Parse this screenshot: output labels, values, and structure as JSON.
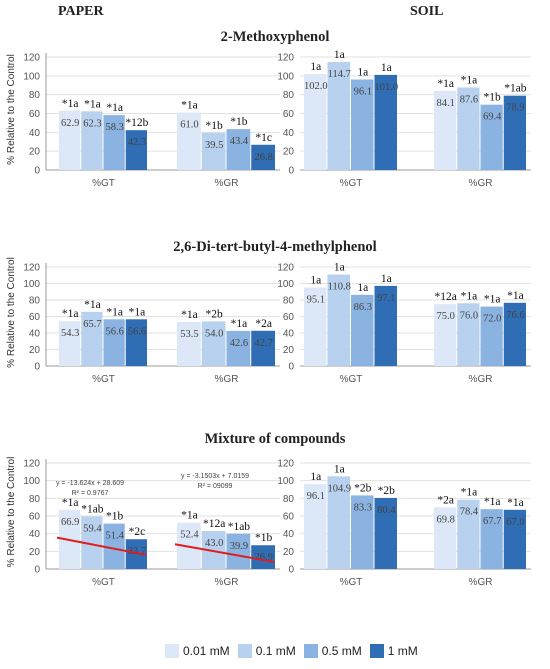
{
  "headers": {
    "paper": "PAPER",
    "soil": "SOIL"
  },
  "colors": [
    "#dce8f7",
    "#b7d1ee",
    "#8bb3e1",
    "#2f6db5"
  ],
  "legend": [
    "0.01 mM",
    "0.1 mM",
    "0.5 mM",
    "1 mM"
  ],
  "ylabel": "% Relative to the Control",
  "yticks": [
    "0",
    "20",
    "40",
    "60",
    "80",
    "100",
    "120"
  ],
  "rows": [
    {
      "title": "2-Methoxyphenol"
    },
    {
      "title": "2,6-Di-tert-butyl-4-methylphenol"
    },
    {
      "title": "Mixture of compounds"
    }
  ],
  "chart_data": [
    {
      "type": "bar",
      "row": 0,
      "panel": "PAPER",
      "categories": [
        "%GT",
        "%GR"
      ],
      "ylim": [
        0,
        120
      ],
      "ylabel": "% Relative to the Control",
      "series": [
        {
          "name": "0.01 mM",
          "values": [
            62.9,
            61.0
          ],
          "labels": [
            "*1a",
            "*1a"
          ]
        },
        {
          "name": "0.1 mM",
          "values": [
            62.3,
            39.5
          ],
          "labels": [
            "*1a",
            "*1b"
          ]
        },
        {
          "name": "0.5 mM",
          "values": [
            58.3,
            43.4
          ],
          "labels": [
            "*1a",
            "*1b"
          ]
        },
        {
          "name": "1 mM",
          "values": [
            42.3,
            26.8
          ],
          "labels": [
            "*12b",
            "*1c"
          ]
        }
      ]
    },
    {
      "type": "bar",
      "row": 0,
      "panel": "SOIL",
      "categories": [
        "%GT",
        "%GR"
      ],
      "ylim": [
        0,
        120
      ],
      "series": [
        {
          "name": "0.01 mM",
          "values": [
            102.0,
            84.1
          ],
          "labels": [
            "1a",
            "*1a"
          ]
        },
        {
          "name": "0.1 mM",
          "values": [
            114.7,
            87.6
          ],
          "labels": [
            "1a",
            "*1a"
          ]
        },
        {
          "name": "0.5 mM",
          "values": [
            96.1,
            69.4
          ],
          "labels": [
            "1a",
            "*1b"
          ]
        },
        {
          "name": "1 mM",
          "values": [
            101.0,
            78.9
          ],
          "labels": [
            "1a",
            "*1ab"
          ]
        }
      ]
    },
    {
      "type": "bar",
      "row": 1,
      "panel": "PAPER",
      "categories": [
        "%GT",
        "%GR"
      ],
      "ylim": [
        0,
        120
      ],
      "ylabel": "% Relative to the Control",
      "series": [
        {
          "name": "0.01 mM",
          "values": [
            54.3,
            53.5
          ],
          "labels": [
            "*1a",
            "*1a"
          ]
        },
        {
          "name": "0.1 mM",
          "values": [
            65.7,
            54.0
          ],
          "labels": [
            "*1a",
            "*2b"
          ]
        },
        {
          "name": "0.5 mM",
          "values": [
            56.6,
            42.6
          ],
          "labels": [
            "*1a",
            "*1a"
          ]
        },
        {
          "name": "1 mM",
          "values": [
            56.6,
            42.7
          ],
          "labels": [
            "*1a",
            "*2a"
          ]
        }
      ]
    },
    {
      "type": "bar",
      "row": 1,
      "panel": "SOIL",
      "categories": [
        "%GT",
        "%GR"
      ],
      "ylim": [
        0,
        120
      ],
      "series": [
        {
          "name": "0.01 mM",
          "values": [
            95.1,
            75.0
          ],
          "labels": [
            "1a",
            "*12a"
          ]
        },
        {
          "name": "0.1 mM",
          "values": [
            110.8,
            76.0
          ],
          "labels": [
            "1a",
            "*1a"
          ]
        },
        {
          "name": "0.5 mM",
          "values": [
            86.3,
            72.0
          ],
          "labels": [
            "1a",
            "*1a"
          ]
        },
        {
          "name": "1 mM",
          "values": [
            97.1,
            76.6
          ],
          "labels": [
            "1a",
            "*1a"
          ]
        }
      ]
    },
    {
      "type": "bar",
      "row": 2,
      "panel": "PAPER",
      "categories": [
        "%GT",
        "%GR"
      ],
      "ylim": [
        0,
        120
      ],
      "ylabel": "% Relative to the Control",
      "series": [
        {
          "name": "0.01 mM",
          "values": [
            66.9,
            52.4
          ],
          "labels": [
            "*1a",
            "*1a"
          ]
        },
        {
          "name": "0.1 mM",
          "values": [
            59.4,
            43.0
          ],
          "labels": [
            "*1ab",
            "*12a"
          ]
        },
        {
          "name": "0.5 mM",
          "values": [
            51.4,
            39.9
          ],
          "labels": [
            "*1b",
            "*1ab"
          ]
        },
        {
          "name": "1 mM",
          "values": [
            33.7,
            26.9
          ],
          "labels": [
            "*2c",
            "*1b"
          ]
        }
      ],
      "trendlines": [
        {
          "category": "%GT",
          "equation": "y = -13.624x + 28.609",
          "r2": "R² = 0.9767",
          "start": 35.5,
          "end": 16.0
        },
        {
          "category": "%GR",
          "equation": "y = -3.1503x + 7.0159",
          "r2": "R² = 09099",
          "start": 28.0,
          "end": 8.0
        }
      ]
    },
    {
      "type": "bar",
      "row": 2,
      "panel": "SOIL",
      "categories": [
        "%GT",
        "%GR"
      ],
      "ylim": [
        0,
        120
      ],
      "series": [
        {
          "name": "0.01 mM",
          "values": [
            96.1,
            69.8
          ],
          "labels": [
            "1a",
            "*2a"
          ]
        },
        {
          "name": "0.1 mM",
          "values": [
            104.9,
            78.4
          ],
          "labels": [
            "1a",
            "*1a"
          ]
        },
        {
          "name": "0.5 mM",
          "values": [
            83.3,
            67.7
          ],
          "labels": [
            "*2b",
            "*1a"
          ]
        },
        {
          "name": "1 mM",
          "values": [
            80.4,
            67.0
          ],
          "labels": [
            "*2b",
            "*1a"
          ]
        }
      ]
    }
  ]
}
